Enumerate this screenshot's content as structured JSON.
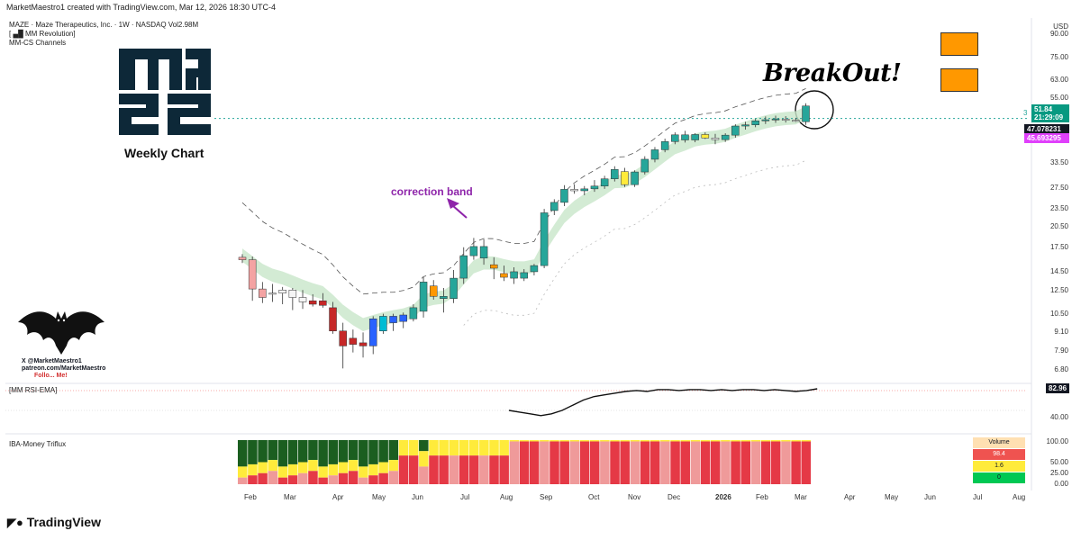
{
  "header": {
    "created_by": "MarketMaestro1 created with TradingView.com, Mar 12, 2026 18:30 UTC-4",
    "symbol_line": "MAZE · Maze Therapeutics, Inc. · 1W · NASDAQ  Vol2.98M",
    "indicator_1": "[ ▄█ MM Revolution]",
    "indicator_2": "MM-CS Channels"
  },
  "annotations": {
    "logo_text": "MAZE",
    "weekly_chart": "Weekly Chart",
    "correction_band": "correction band",
    "breakout": "BreakOut!",
    "bat_line1": "X @MarketMaestro1",
    "bat_line2": "patreon.com/MarketMaestro",
    "bat_line3": "Follo... Me!"
  },
  "price_axis": {
    "currency": "USD",
    "ticks": [
      "90.00",
      "75.00",
      "63.00",
      "55.00",
      "39.50",
      "33.50",
      "27.50",
      "23.50",
      "20.50",
      "17.50",
      "14.50",
      "12.50",
      "10.50",
      "9.10",
      "7.90",
      "6.80"
    ],
    "last_price": "51.84",
    "countdown": "21:29:09",
    "level_1": "47.078231",
    "level_2": "45.693295",
    "marker": "3"
  },
  "rsi_pane": {
    "title": "[MM RSI-EMA]",
    "value": "82.96",
    "tick": "40.00"
  },
  "flow_pane": {
    "title": "IBA-Money Triflux",
    "ticks": [
      "100.00",
      "50.00",
      "25.00",
      "0.00"
    ],
    "volume_box": {
      "title": "Volume",
      "v1": "98.4",
      "v2": "1.6",
      "v3": "0"
    }
  },
  "time_axis": [
    "Feb",
    "Mar",
    "Apr",
    "May",
    "Jun",
    "Jul",
    "Aug",
    "Sep",
    "Oct",
    "Nov",
    "Dec",
    "2026",
    "Feb",
    "Mar",
    "Apr",
    "May",
    "Jun",
    "Jul",
    "Aug"
  ],
  "footer": {
    "brand": "TradingView"
  },
  "colors": {
    "up": "#26a69a",
    "down": "#ef5350",
    "orange": "#ff9800",
    "blue": "#2962ff",
    "cyan": "#00bcd4",
    "yellow": "#ffeb3b",
    "darkred": "#c62828",
    "green_badge": "#089981",
    "magenta_badge": "#e040fb",
    "annotation_purple": "#8e24aa"
  },
  "chart_data": {
    "type": "candlestick",
    "title": "MAZE · Maze Therapeutics, Inc. · 1W · NASDAQ",
    "y_scale": "log",
    "ylim": [
      6.5,
      95
    ],
    "candles": [
      {
        "o": 16.2,
        "h": 16.6,
        "l": 15.5,
        "c": 15.9,
        "col": "down"
      },
      {
        "o": 15.9,
        "h": 16.3,
        "l": 11.6,
        "c": 12.7,
        "col": "down"
      },
      {
        "o": 12.7,
        "h": 13.4,
        "l": 11.4,
        "c": 11.9,
        "col": "down"
      },
      {
        "o": 12.2,
        "h": 13.2,
        "l": 11.5,
        "c": 12.3,
        "col": "neutral"
      },
      {
        "o": 12.3,
        "h": 12.9,
        "l": 11.3,
        "c": 12.6,
        "col": "neutral"
      },
      {
        "o": 12.6,
        "h": 12.8,
        "l": 10.8,
        "c": 11.9,
        "col": "neutral"
      },
      {
        "o": 11.9,
        "h": 12.6,
        "l": 10.9,
        "c": 11.5,
        "col": "neutral"
      },
      {
        "o": 11.6,
        "h": 12.2,
        "l": 11.1,
        "c": 11.3,
        "col": "darkred"
      },
      {
        "o": 11.6,
        "h": 12.3,
        "l": 11.0,
        "c": 11.2,
        "col": "darkred"
      },
      {
        "o": 11.0,
        "h": 11.5,
        "l": 9.0,
        "c": 9.2,
        "col": "darkred"
      },
      {
        "o": 9.2,
        "h": 9.8,
        "l": 6.9,
        "c": 8.2,
        "col": "darkred"
      },
      {
        "o": 8.7,
        "h": 9.3,
        "l": 7.8,
        "c": 8.3,
        "col": "darkred"
      },
      {
        "o": 8.4,
        "h": 9.1,
        "l": 7.5,
        "c": 8.2,
        "col": "darkred"
      },
      {
        "o": 8.2,
        "h": 10.3,
        "l": 7.7,
        "c": 10.1,
        "col": "blue"
      },
      {
        "o": 9.2,
        "h": 10.5,
        "l": 9.0,
        "c": 10.3,
        "col": "cyan"
      },
      {
        "o": 9.8,
        "h": 10.5,
        "l": 9.2,
        "c": 10.3,
        "col": "blue"
      },
      {
        "o": 9.9,
        "h": 10.6,
        "l": 9.4,
        "c": 10.4,
        "col": "blue"
      },
      {
        "o": 10.1,
        "h": 11.3,
        "l": 9.9,
        "c": 11.0,
        "col": "up"
      },
      {
        "o": 10.7,
        "h": 13.9,
        "l": 10.2,
        "c": 13.4,
        "col": "up"
      },
      {
        "o": 13.0,
        "h": 13.6,
        "l": 11.7,
        "c": 12.0,
        "col": "orange"
      },
      {
        "o": 12.0,
        "h": 12.8,
        "l": 10.6,
        "c": 11.8,
        "col": "up"
      },
      {
        "o": 11.8,
        "h": 14.7,
        "l": 11.4,
        "c": 13.8,
        "col": "up"
      },
      {
        "o": 13.8,
        "h": 17.5,
        "l": 13.2,
        "c": 16.4,
        "col": "up"
      },
      {
        "o": 16.4,
        "h": 18.8,
        "l": 15.9,
        "c": 17.6,
        "col": "up"
      },
      {
        "o": 17.6,
        "h": 18.6,
        "l": 15.3,
        "c": 16.1,
        "col": "up"
      },
      {
        "o": 15.3,
        "h": 16.2,
        "l": 13.7,
        "c": 14.9,
        "col": "orange"
      },
      {
        "o": 14.3,
        "h": 15.2,
        "l": 13.5,
        "c": 13.9,
        "col": "orange"
      },
      {
        "o": 14.5,
        "h": 15.0,
        "l": 13.2,
        "c": 13.8,
        "col": "up"
      },
      {
        "o": 13.8,
        "h": 14.8,
        "l": 13.5,
        "c": 14.4,
        "col": "up"
      },
      {
        "o": 14.5,
        "h": 15.4,
        "l": 14.1,
        "c": 15.2,
        "col": "up"
      },
      {
        "o": 15.2,
        "h": 23.5,
        "l": 14.9,
        "c": 22.8,
        "col": "up"
      },
      {
        "o": 23.2,
        "h": 25.3,
        "l": 22.4,
        "c": 24.7,
        "col": "up"
      },
      {
        "o": 24.7,
        "h": 28.2,
        "l": 24.0,
        "c": 27.3,
        "col": "up"
      },
      {
        "o": 27.3,
        "h": 28.4,
        "l": 26.4,
        "c": 27.0,
        "col": "neutral"
      },
      {
        "o": 27.0,
        "h": 28.0,
        "l": 26.1,
        "c": 27.4,
        "col": "up"
      },
      {
        "o": 27.4,
        "h": 29.3,
        "l": 26.8,
        "c": 28.0,
        "col": "up"
      },
      {
        "o": 28.0,
        "h": 30.3,
        "l": 27.4,
        "c": 29.6,
        "col": "up"
      },
      {
        "o": 29.6,
        "h": 32.6,
        "l": 29.0,
        "c": 31.8,
        "col": "up"
      },
      {
        "o": 31.3,
        "h": 32.2,
        "l": 27.8,
        "c": 28.3,
        "col": "yellow"
      },
      {
        "o": 28.3,
        "h": 31.6,
        "l": 27.8,
        "c": 31.2,
        "col": "up"
      },
      {
        "o": 31.2,
        "h": 35.2,
        "l": 30.6,
        "c": 34.4,
        "col": "up"
      },
      {
        "o": 34.4,
        "h": 37.8,
        "l": 33.6,
        "c": 37.0,
        "col": "up"
      },
      {
        "o": 37.0,
        "h": 40.3,
        "l": 36.3,
        "c": 39.4,
        "col": "up"
      },
      {
        "o": 39.4,
        "h": 42.3,
        "l": 38.6,
        "c": 41.5,
        "col": "up"
      },
      {
        "o": 41.5,
        "h": 42.8,
        "l": 39.1,
        "c": 39.9,
        "col": "up"
      },
      {
        "o": 39.9,
        "h": 42.0,
        "l": 39.2,
        "c": 41.6,
        "col": "up"
      },
      {
        "o": 41.6,
        "h": 42.3,
        "l": 40.2,
        "c": 40.5,
        "col": "yellow"
      },
      {
        "o": 40.5,
        "h": 41.8,
        "l": 38.6,
        "c": 40.0,
        "col": "neutral"
      },
      {
        "o": 40.0,
        "h": 42.0,
        "l": 39.3,
        "c": 41.4,
        "col": "up"
      },
      {
        "o": 41.4,
        "h": 45.0,
        "l": 40.6,
        "c": 44.4,
        "col": "up"
      },
      {
        "o": 44.4,
        "h": 45.9,
        "l": 43.2,
        "c": 44.8,
        "col": "up"
      },
      {
        "o": 44.8,
        "h": 46.9,
        "l": 44.0,
        "c": 46.2,
        "col": "up"
      },
      {
        "o": 46.2,
        "h": 47.8,
        "l": 45.1,
        "c": 46.6,
        "col": "up"
      },
      {
        "o": 46.6,
        "h": 48.1,
        "l": 45.5,
        "c": 46.9,
        "col": "up"
      },
      {
        "o": 46.8,
        "h": 47.9,
        "l": 45.6,
        "c": 46.5,
        "col": "neutral"
      },
      {
        "o": 46.4,
        "h": 47.3,
        "l": 45.8,
        "c": 46.3,
        "col": "neutral"
      },
      {
        "o": 45.9,
        "h": 52.9,
        "l": 44.8,
        "c": 51.8,
        "col": "up"
      }
    ]
  }
}
